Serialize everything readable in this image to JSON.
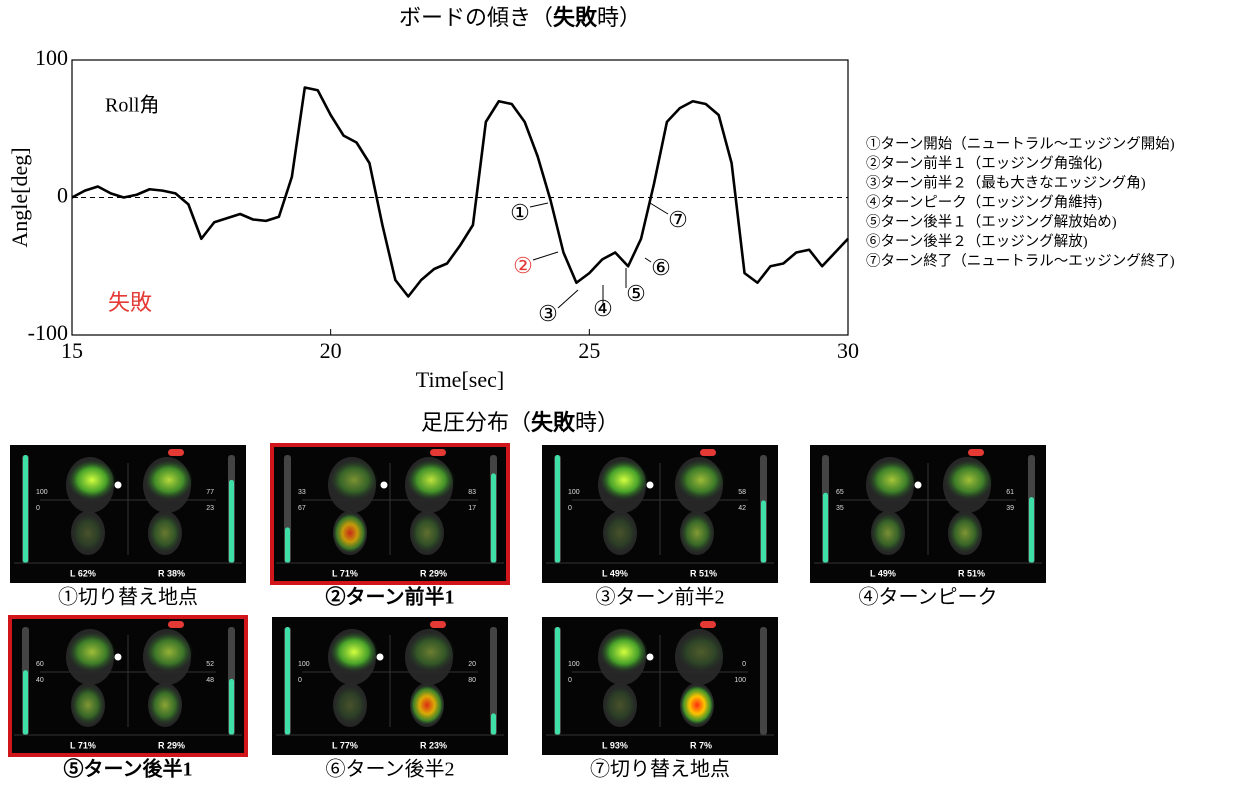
{
  "chart_data": {
    "type": "line",
    "title": [
      "ボードの傾き（",
      "失敗",
      "時）"
    ],
    "x_label": "Time[sec]",
    "y_label": "Angle[deg]",
    "color": "#000000",
    "x": [
      15,
      15.25,
      15.5,
      15.75,
      16,
      16.25,
      16.5,
      16.75,
      17,
      17.25,
      17.5,
      17.75,
      18,
      18.25,
      18.5,
      18.75,
      19,
      19.25,
      19.5,
      19.75,
      20,
      20.25,
      20.5,
      20.75,
      21,
      21.25,
      21.5,
      21.75,
      22,
      22.25,
      22.5,
      22.75,
      23,
      23.25,
      23.5,
      23.75,
      24,
      24.25,
      24.5,
      24.75,
      25,
      25.25,
      25.5,
      25.75,
      26,
      26.25,
      26.5,
      26.75,
      27,
      27.25,
      27.5,
      27.75,
      28,
      28.25,
      28.5,
      28.75,
      29,
      29.25,
      29.5,
      29.75,
      30
    ],
    "values": [
      0,
      5,
      8,
      3,
      0,
      2,
      6,
      5,
      3,
      -5,
      -30,
      -18,
      -15,
      -12,
      -16,
      -17,
      -14,
      15,
      80,
      78,
      60,
      45,
      40,
      25,
      -20,
      -60,
      -72,
      -60,
      -52,
      -48,
      -35,
      -20,
      55,
      70,
      68,
      55,
      30,
      -2,
      -40,
      -62,
      -55,
      -45,
      -40,
      -50,
      -30,
      10,
      55,
      65,
      70,
      68,
      60,
      25,
      -55,
      -62,
      -50,
      -48,
      -40,
      -38,
      -50,
      -40,
      -30
    ],
    "xlim": [
      15,
      30
    ],
    "ylim": [
      -100,
      100
    ],
    "xticks": [
      15,
      20,
      25,
      30
    ],
    "yticks": [
      -100,
      0,
      100
    ],
    "hline": 0,
    "annotations": [
      {
        "text": "Roll角",
        "color": "#000000"
      },
      {
        "text": "失敗",
        "color": "#e53935"
      }
    ],
    "markers": [
      "①",
      "②",
      "③",
      "④",
      "⑤",
      "⑥",
      "⑦"
    ],
    "notes": [
      "①ターン開始（ニュートラル～エッジング開始)",
      "②ターン前半１（エッジング角強化)",
      "③ターン前半２（最も大きなエッジング角)",
      "④ターンピーク（エッジング角維持)",
      "⑤ターン後半１（エッジング解放始め)",
      "⑥ターン後半２（エッジング解放)",
      "⑦ターン終了（ニュートラル～エッジング終了)"
    ]
  },
  "pressure": {
    "title": [
      "足圧分布（",
      "失敗",
      "時）"
    ],
    "panels": [
      {
        "caption": "①切り替え地点",
        "left": "L  62%",
        "right": "R  38%",
        "lt": 100,
        "lb": 0,
        "rt": 77,
        "rb": 23,
        "highlight": false
      },
      {
        "caption": "②ターン前半1",
        "left": "L  71%",
        "right": "R  29%",
        "lt": 33,
        "lb": 67,
        "rt": 83,
        "rb": 17,
        "highlight": true
      },
      {
        "caption": "③ターン前半2",
        "left": "L  49%",
        "right": "R  51%",
        "lt": 100,
        "lb": 0,
        "rt": 58,
        "rb": 42,
        "highlight": false
      },
      {
        "caption": "④ターンピーク",
        "left": "L  49%",
        "right": "R  51%",
        "lt": 65,
        "lb": 35,
        "rt": 61,
        "rb": 39,
        "highlight": false
      },
      {
        "caption": "⑤ターン後半1",
        "left": "L  71%",
        "right": "R  29%",
        "lt": 60,
        "lb": 40,
        "rt": 52,
        "rb": 48,
        "highlight": true
      },
      {
        "caption": "⑥ターン後半2",
        "left": "L  77%",
        "right": "R  23%",
        "lt": 100,
        "lb": 0,
        "rt": 20,
        "rb": 80,
        "highlight": false
      },
      {
        "caption": "⑦切り替え地点",
        "left": "L  93%",
        "right": "R  7%",
        "lt": 100,
        "lb": 0,
        "rt": 0,
        "rb": 100,
        "highlight": false
      }
    ]
  }
}
